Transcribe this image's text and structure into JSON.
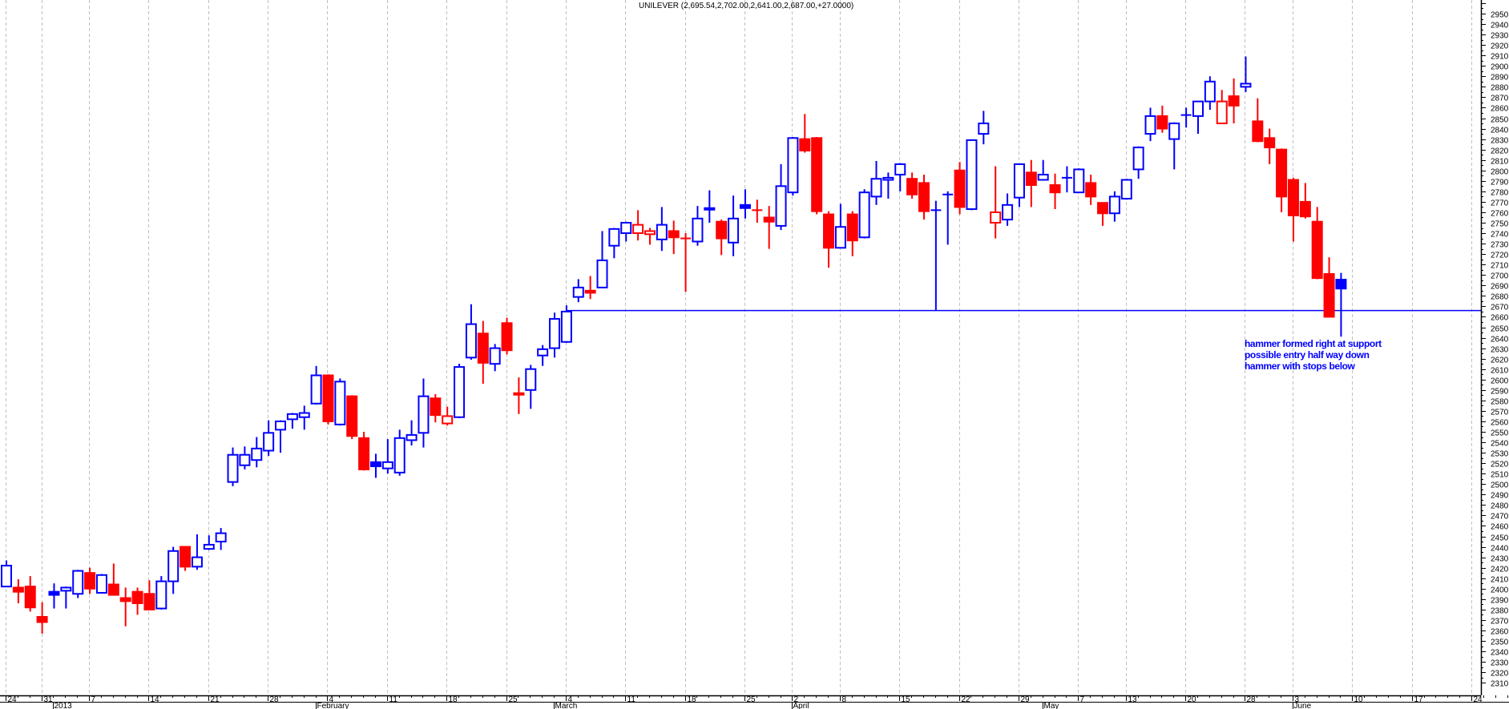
{
  "chart_data": {
    "type": "candlestick",
    "title": "UNILEVER (2,695.54,2,702.00,2,641.00,2,687.00,+27.0000)",
    "ylim": [
      2310,
      2950
    ],
    "y_ticks_step": 10,
    "grid": "vertical dashed weekly",
    "y_axis_side": "right",
    "colors": {
      "up_vs_prev": "#0000ff",
      "down_vs_prev": "#ff0000",
      "grid": "#c0c0c0"
    },
    "x_tick_labels": [
      "24",
      "31",
      "7",
      "14",
      "21",
      "28",
      "4",
      "11",
      "18",
      "25",
      "4",
      "11",
      "18",
      "25",
      "2",
      "8",
      "15",
      "22",
      "29",
      "7",
      "13",
      "20",
      "28",
      "3",
      "10",
      "17",
      "24"
    ],
    "x_month_labels": [
      "2013",
      "February",
      "March",
      "April",
      "May",
      "June"
    ],
    "support_level": 2666,
    "annotation": [
      "hammer formed right at support",
      "possible entry half way down",
      "hammer with stops below"
    ],
    "ohlc_columns": [
      "open",
      "high",
      "low",
      "close"
    ],
    "candles": [
      [
        2402,
        2427,
        2402,
        2422
      ],
      [
        2401,
        2409,
        2386,
        2397
      ],
      [
        2402,
        2412,
        2378,
        2382
      ],
      [
        2373,
        2387,
        2357,
        2368
      ],
      [
        2397,
        2405,
        2381,
        2394
      ],
      [
        2398,
        2402,
        2381,
        2401
      ],
      [
        2395,
        2418,
        2391,
        2417
      ],
      [
        2415,
        2420,
        2395,
        2400
      ],
      [
        2396,
        2414,
        2396,
        2413
      ],
      [
        2404,
        2424,
        2394,
        2394
      ],
      [
        2391,
        2401,
        2364,
        2388
      ],
      [
        2397,
        2401,
        2375,
        2386
      ],
      [
        2395,
        2408,
        2380,
        2380
      ],
      [
        2381,
        2412,
        2380,
        2407
      ],
      [
        2407,
        2440,
        2395,
        2436
      ],
      [
        2440,
        2440,
        2417,
        2421
      ],
      [
        2421,
        2452,
        2418,
        2430
      ],
      [
        2438,
        2451,
        2437,
        2442
      ],
      [
        2445,
        2458,
        2437,
        2453
      ],
      [
        2502,
        2535,
        2498,
        2528
      ],
      [
        2518,
        2536,
        2514,
        2528
      ],
      [
        2523,
        2545,
        2516,
        2534
      ],
      [
        2532,
        2561,
        2527,
        2549
      ],
      [
        2552,
        2561,
        2530,
        2560
      ],
      [
        2562,
        2568,
        2553,
        2567
      ],
      [
        2564,
        2575,
        2552,
        2568
      ],
      [
        2577,
        2613,
        2576,
        2604
      ],
      [
        2604,
        2605,
        2557,
        2560
      ],
      [
        2557,
        2601,
        2556,
        2598
      ],
      [
        2584,
        2585,
        2543,
        2546
      ],
      [
        2544,
        2550,
        2513,
        2514
      ],
      [
        2521,
        2529,
        2506,
        2517
      ],
      [
        2515,
        2543,
        2510,
        2521
      ],
      [
        2511,
        2552,
        2508,
        2544
      ],
      [
        2542,
        2561,
        2537,
        2547
      ],
      [
        2549,
        2601,
        2535,
        2584
      ],
      [
        2582,
        2586,
        2559,
        2566
      ],
      [
        2558,
        2574,
        2556,
        2565
      ],
      [
        2564,
        2615,
        2563,
        2612
      ],
      [
        2621,
        2672,
        2619,
        2653
      ],
      [
        2644,
        2656,
        2596,
        2616
      ],
      [
        2615,
        2634,
        2608,
        2630
      ],
      [
        2654,
        2659,
        2624,
        2628
      ],
      [
        2586,
        2602,
        2567,
        2587
      ],
      [
        2590,
        2614,
        2572,
        2610
      ],
      [
        2623,
        2633,
        2613,
        2629
      ],
      [
        2630,
        2664,
        2621,
        2658
      ],
      [
        2636,
        2671,
        2635,
        2665
      ],
      [
        2679,
        2696,
        2674,
        2688
      ],
      [
        2685,
        2699,
        2677,
        2683
      ],
      [
        2688,
        2742,
        2688,
        2714
      ],
      [
        2728,
        2745,
        2716,
        2744
      ],
      [
        2740,
        2751,
        2732,
        2750
      ],
      [
        2740,
        2762,
        2733,
        2748
      ],
      [
        2739,
        2745,
        2729,
        2742
      ],
      [
        2734,
        2765,
        2723,
        2748
      ],
      [
        2742,
        2752,
        2720,
        2736
      ],
      [
        2735,
        2740,
        2684,
        2735
      ],
      [
        2732,
        2766,
        2728,
        2754
      ],
      [
        2763,
        2781,
        2750,
        2764
      ],
      [
        2751,
        2753,
        2719,
        2735
      ],
      [
        2731,
        2776,
        2718,
        2754
      ],
      [
        2767,
        2782,
        2754,
        2764
      ],
      [
        2762,
        2772,
        2750,
        2762
      ],
      [
        2755,
        2766,
        2725,
        2751
      ],
      [
        2747,
        2806,
        2743,
        2785
      ],
      [
        2779,
        2832,
        2776,
        2831
      ],
      [
        2830,
        2854,
        2817,
        2819
      ],
      [
        2831,
        2832,
        2758,
        2761
      ],
      [
        2758,
        2761,
        2707,
        2726
      ],
      [
        2726,
        2768,
        2726,
        2746
      ],
      [
        2758,
        2761,
        2718,
        2733
      ],
      [
        2736,
        2782,
        2735,
        2779
      ],
      [
        2775,
        2809,
        2767,
        2792
      ],
      [
        2791,
        2798,
        2773,
        2793
      ],
      [
        2796,
        2807,
        2780,
        2806
      ],
      [
        2792,
        2798,
        2773,
        2777
      ],
      [
        2788,
        2796,
        2753,
        2761
      ],
      [
        2762,
        2771,
        2666,
        2762
      ],
      [
        2777,
        2780,
        2729,
        2777
      ],
      [
        2800,
        2808,
        2758,
        2765
      ],
      [
        2763,
        2829,
        2762,
        2829
      ],
      [
        2835,
        2857,
        2825,
        2845
      ],
      [
        2750,
        2804,
        2735,
        2760
      ],
      [
        2753,
        2778,
        2747,
        2767
      ],
      [
        2774,
        2806,
        2765,
        2806
      ],
      [
        2798,
        2810,
        2765,
        2786
      ],
      [
        2791,
        2810,
        2791,
        2796
      ],
      [
        2786,
        2797,
        2763,
        2779
      ],
      [
        2793,
        2804,
        2779,
        2793
      ],
      [
        2779,
        2802,
        2779,
        2801
      ],
      [
        2788,
        2796,
        2767,
        2775
      ],
      [
        2769,
        2769,
        2747,
        2759
      ],
      [
        2759,
        2780,
        2751,
        2775
      ],
      [
        2773,
        2792,
        2772,
        2791
      ],
      [
        2801,
        2823,
        2792,
        2822
      ],
      [
        2835,
        2860,
        2828,
        2852
      ],
      [
        2852,
        2862,
        2836,
        2840
      ],
      [
        2830,
        2846,
        2801,
        2845
      ],
      [
        2853,
        2860,
        2841,
        2853
      ],
      [
        2852,
        2866,
        2835,
        2866
      ],
      [
        2866,
        2890,
        2858,
        2885
      ],
      [
        2845,
        2877,
        2845,
        2866
      ],
      [
        2871,
        2888,
        2845,
        2862
      ],
      [
        2880,
        2909,
        2875,
        2883
      ],
      [
        2847,
        2869,
        2827,
        2828
      ],
      [
        2831,
        2840,
        2806,
        2822
      ],
      [
        2820,
        2821,
        2760,
        2775
      ],
      [
        2791,
        2793,
        2732,
        2757
      ],
      [
        2770,
        2788,
        2754,
        2756
      ],
      [
        2751,
        2765,
        2696,
        2697
      ],
      [
        2701,
        2717,
        2660,
        2660
      ],
      [
        2695.54,
        2702,
        2641,
        2687
      ]
    ]
  }
}
